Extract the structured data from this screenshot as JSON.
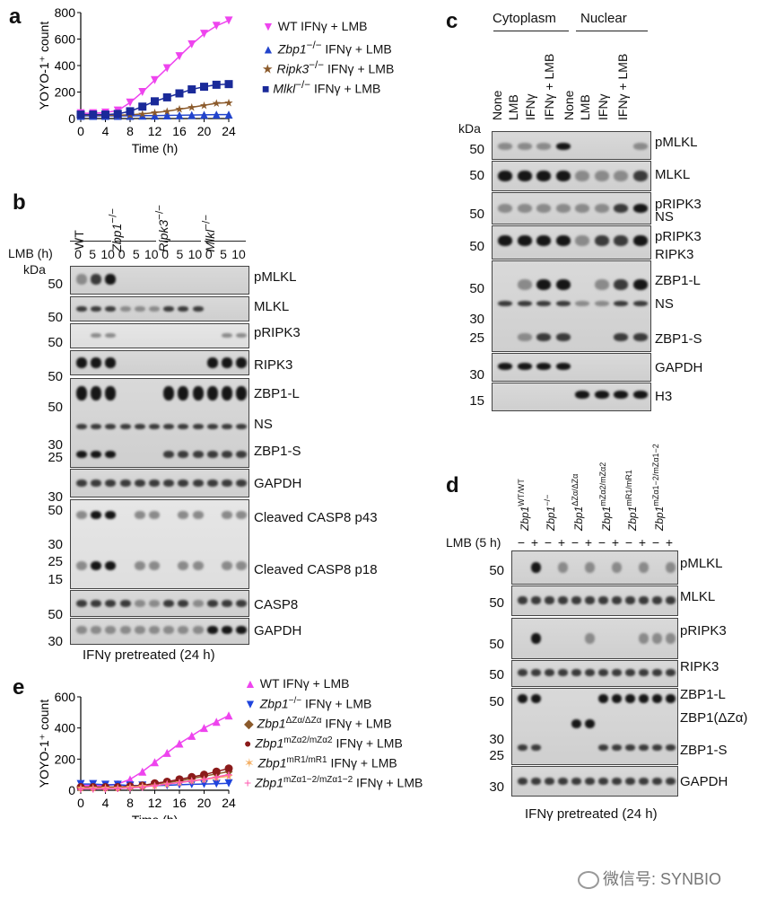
{
  "panel_labels": {
    "a": "a",
    "b": "b",
    "c": "c",
    "d": "d",
    "e": "e"
  },
  "panel_a": {
    "chart_data": {
      "type": "line",
      "ylabel": "YOYO-1⁺ count",
      "xlabel": "Time (h)",
      "x_ticks": [
        "0",
        "4",
        "8",
        "12",
        "16",
        "20",
        "24"
      ],
      "y_ticks": [
        "0",
        "200",
        "400",
        "600",
        "800"
      ],
      "ylim": [
        0,
        800
      ],
      "xlim": [
        0,
        24
      ],
      "x": [
        0,
        2,
        4,
        6,
        8,
        10,
        12,
        14,
        16,
        18,
        20,
        22,
        24
      ],
      "series": [
        {
          "name": "WT IFNγ + LMB",
          "color": "#ee44ee",
          "marker": "triangle-down",
          "values": [
            40,
            40,
            45,
            60,
            120,
            200,
            290,
            380,
            470,
            560,
            640,
            700,
            740
          ]
        },
        {
          "name": "Zbp1−/− IFNγ + LMB",
          "color": "#2244cc",
          "marker": "triangle-up",
          "values": [
            20,
            20,
            20,
            20,
            20,
            22,
            22,
            24,
            25,
            26,
            28,
            30,
            30
          ]
        },
        {
          "name": "Ripk3−/− IFNγ + LMB",
          "color": "#8b5a2b",
          "marker": "star",
          "values": [
            25,
            25,
            25,
            25,
            28,
            35,
            45,
            55,
            70,
            85,
            100,
            115,
            120
          ]
        },
        {
          "name": "Mlkl−/− IFNγ + LMB",
          "color": "#1a2a99",
          "marker": "square",
          "values": [
            30,
            30,
            30,
            35,
            55,
            90,
            130,
            160,
            190,
            220,
            240,
            255,
            260
          ]
        }
      ]
    },
    "legend": [
      {
        "prefix": "WT",
        "italic": "",
        "suffix": " IFNγ + LMB"
      },
      {
        "prefix": "",
        "italic": "Zbp1",
        "sup": "−/−",
        "suffix": " IFNγ + LMB"
      },
      {
        "prefix": "",
        "italic": "Ripk3",
        "sup": "−/−",
        "suffix": " IFNγ + LMB"
      },
      {
        "prefix": "",
        "italic": "Mlkl",
        "sup": "−/−",
        "suffix": " IFNγ + LMB"
      }
    ]
  },
  "panel_b": {
    "genotypes": [
      "WT",
      "Zbp1−/−",
      "Ripk3−/−",
      "Mlkl−/−"
    ],
    "lmb_label": "LMB (h)",
    "lanes": [
      "0",
      "5",
      "10",
      "0",
      "5",
      "10",
      "0",
      "5",
      "10",
      "0",
      "5",
      "10"
    ],
    "kda": "kDa",
    "rows": [
      {
        "name": "pMLKL",
        "mw": [
          "50"
        ]
      },
      {
        "name": "MLKL",
        "mw": [
          "50"
        ]
      },
      {
        "name": "pRIPK3",
        "mw": [
          "50"
        ]
      },
      {
        "name": "RIPK3",
        "mw": [
          "50"
        ]
      },
      {
        "name": "ZBP1-L",
        "mw": [
          "50"
        ]
      },
      {
        "name": "NS",
        "mw": [
          "30"
        ]
      },
      {
        "name": "ZBP1-S",
        "mw": [
          "25"
        ]
      },
      {
        "name": "GAPDH",
        "mw": [
          "30"
        ]
      },
      {
        "name": "Cleaved CASP8 p43",
        "mw": [
          "50",
          "30"
        ]
      },
      {
        "name": "Cleaved CASP8 p18",
        "mw": [
          "25",
          "15"
        ]
      },
      {
        "name": "CASP8",
        "mw": [
          "50"
        ]
      },
      {
        "name": "GAPDH",
        "mw": [
          "30"
        ]
      }
    ],
    "caption": "IFNγ pretreated (24 h)"
  },
  "panel_c": {
    "groups": [
      "Cytoplasm",
      "Nuclear"
    ],
    "lanes": [
      "None",
      "LMB",
      "IFNγ",
      "IFNγ + LMB",
      "None",
      "LMB",
      "IFNγ",
      "IFNγ + LMB"
    ],
    "kda": "kDa",
    "rows": [
      {
        "name": "pMLKL",
        "mw": [
          "50"
        ]
      },
      {
        "name": "MLKL",
        "mw": [
          "50"
        ]
      },
      {
        "name": "pRIPK3",
        "mw": [
          "50"
        ]
      },
      {
        "name": "NS",
        "mw": []
      },
      {
        "name": "pRIPK3",
        "mw": [
          "50"
        ]
      },
      {
        "name": "RIPK3",
        "mw": []
      },
      {
        "name": "ZBP1-L",
        "mw": [
          "50"
        ]
      },
      {
        "name": "NS",
        "mw": [
          "30"
        ]
      },
      {
        "name": "ZBP1-S",
        "mw": [
          "25"
        ]
      },
      {
        "name": "GAPDH",
        "mw": [
          "30"
        ]
      },
      {
        "name": "H3",
        "mw": [
          "15"
        ]
      }
    ]
  },
  "panel_d": {
    "genotypes": [
      "Zbp1WT/WT",
      "Zbp1−/−",
      "Zbp1ΔZα/ΔZα",
      "Zbp1mZα2/mZα2",
      "Zbp1mR1/mR1",
      "Zbp1mZα1−2/mZα1−2"
    ],
    "lmb_label": "LMB (5 h)",
    "lane_signs": [
      "−",
      "+",
      "−",
      "+",
      "−",
      "+",
      "−",
      "+",
      "−",
      "+",
      "−",
      "+"
    ],
    "rows": [
      {
        "name": "pMLKL",
        "mw": [
          "50"
        ]
      },
      {
        "name": "MLKL",
        "mw": [
          "50"
        ]
      },
      {
        "name": "pRIPK3",
        "mw": [
          "50"
        ]
      },
      {
        "name": "RIPK3",
        "mw": [
          "50"
        ]
      },
      {
        "name": "ZBP1-L",
        "mw": [
          "50"
        ]
      },
      {
        "name": "ZBP1(ΔZα)",
        "mw": [
          "30"
        ]
      },
      {
        "name": "ZBP1-S",
        "mw": [
          "25"
        ]
      },
      {
        "name": "GAPDH",
        "mw": [
          "30"
        ]
      }
    ],
    "caption": "IFNγ pretreated (24 h)"
  },
  "panel_e": {
    "chart_data": {
      "type": "line",
      "ylabel": "YOYO-1⁺ count",
      "xlabel": "Time (h)",
      "x_ticks": [
        "0",
        "4",
        "8",
        "12",
        "16",
        "20",
        "24"
      ],
      "y_ticks": [
        "0",
        "200",
        "400",
        "600"
      ],
      "ylim": [
        0,
        600
      ],
      "xlim": [
        0,
        24
      ],
      "x": [
        0,
        2,
        4,
        6,
        8,
        10,
        12,
        14,
        16,
        18,
        20,
        22,
        24
      ],
      "series": [
        {
          "name": "WT IFNγ + LMB",
          "color": "#ee44ee",
          "marker": "triangle-up",
          "values": [
            30,
            30,
            30,
            40,
            70,
            120,
            180,
            240,
            300,
            350,
            400,
            440,
            480
          ]
        },
        {
          "name": "Zbp1−/− IFNγ + LMB",
          "color": "#1f44dd",
          "marker": "triangle-down",
          "values": [
            40,
            40,
            35,
            35,
            30,
            30,
            30,
            32,
            35,
            38,
            40,
            42,
            45
          ]
        },
        {
          "name": "Zbp1ΔZα/ΔZα IFNγ + LMB",
          "color": "#8b5a2b",
          "marker": "diamond",
          "values": [
            20,
            20,
            20,
            20,
            25,
            30,
            40,
            50,
            60,
            75,
            90,
            105,
            120
          ]
        },
        {
          "name": "Zbp1mZα2/mZα2 IFNγ + LMB",
          "color": "#8b1a1a",
          "marker": "circle",
          "values": [
            20,
            20,
            20,
            20,
            25,
            30,
            45,
            55,
            70,
            85,
            100,
            120,
            140
          ]
        },
        {
          "name": "Zbp1mR1/mR1 IFNγ + LMB",
          "color": "#f4b066",
          "marker": "star",
          "values": [
            15,
            15,
            15,
            15,
            20,
            25,
            30,
            40,
            50,
            60,
            70,
            80,
            90
          ]
        },
        {
          "name": "Zbp1mZα1−2/mZα1−2 IFNγ + LMB",
          "color": "#ff5ab0",
          "marker": "plus",
          "values": [
            10,
            10,
            10,
            12,
            15,
            20,
            30,
            40,
            50,
            60,
            70,
            85,
            100
          ]
        }
      ]
    },
    "legend": [
      {
        "prefix": "WT",
        "italic": "",
        "sup": "",
        "suffix": " IFNγ + LMB"
      },
      {
        "prefix": "",
        "italic": "Zbp1",
        "sup": "−/−",
        "suffix": " IFNγ + LMB"
      },
      {
        "prefix": "",
        "italic": "Zbp1",
        "sup": "ΔZα/ΔZα",
        "suffix": " IFNγ + LMB"
      },
      {
        "prefix": "",
        "italic": "Zbp1",
        "sup": "mZα2/mZα2",
        "suffix": " IFNγ + LMB"
      },
      {
        "prefix": "",
        "italic": "Zbp1",
        "sup": "mR1/mR1",
        "suffix": " IFNγ + LMB"
      },
      {
        "prefix": "",
        "italic": "Zbp1",
        "sup": "mZα1−2/mZα1−2",
        "suffix": " IFNγ + LMB"
      }
    ]
  },
  "watermark": "微信号: SYNBIO"
}
